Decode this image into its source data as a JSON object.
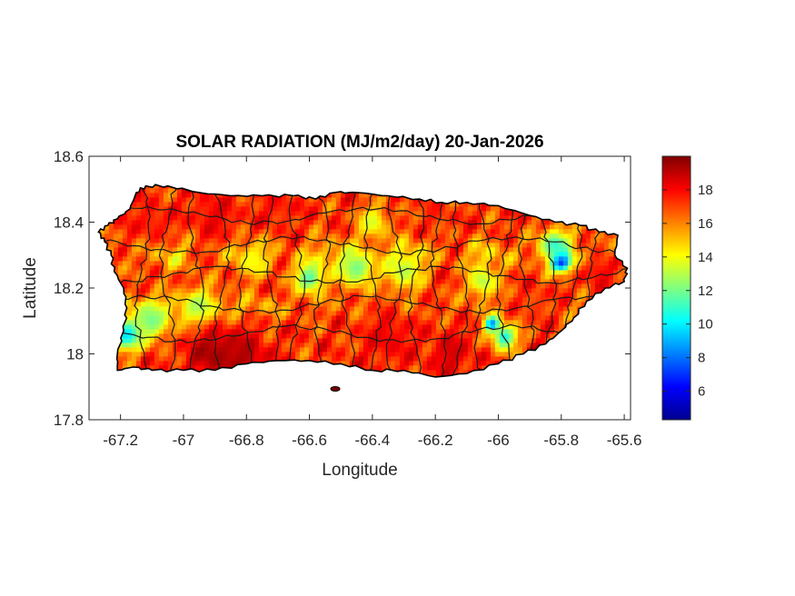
{
  "chart_data": {
    "type": "heatmap",
    "title": "SOLAR RADIATION (MJ/m2/day) 20-Jan-2026",
    "xlabel": "Longitude",
    "ylabel": "Latitude",
    "xlim": [
      -67.3,
      -65.58
    ],
    "ylim": [
      17.8,
      18.6
    ],
    "x_ticks": [
      {
        "value": -67.2,
        "label": "-67.2"
      },
      {
        "value": -67.0,
        "label": "-67"
      },
      {
        "value": -66.8,
        "label": "-66.8"
      },
      {
        "value": -66.6,
        "label": "-66.6"
      },
      {
        "value": -66.4,
        "label": "-66.4"
      },
      {
        "value": -66.2,
        "label": "-66.2"
      },
      {
        "value": -66.0,
        "label": "-66"
      },
      {
        "value": -65.8,
        "label": "-65.8"
      },
      {
        "value": -65.6,
        "label": "-65.6"
      }
    ],
    "y_ticks": [
      {
        "value": 17.8,
        "label": "17.8"
      },
      {
        "value": 18.0,
        "label": "18"
      },
      {
        "value": 18.2,
        "label": "18.2"
      },
      {
        "value": 18.4,
        "label": "18.4"
      },
      {
        "value": 18.6,
        "label": "18.6"
      }
    ],
    "colorbar": {
      "colormap": "jet",
      "range": [
        4.3,
        20.0
      ],
      "ticks": [
        {
          "value": 6,
          "label": "6"
        },
        {
          "value": 8,
          "label": "8"
        },
        {
          "value": 10,
          "label": "10"
        },
        {
          "value": 12,
          "label": "12"
        },
        {
          "value": 14,
          "label": "14"
        },
        {
          "value": 16,
          "label": "16"
        },
        {
          "value": 18,
          "label": "18"
        }
      ]
    },
    "island_outline": [
      [
        -67.27,
        18.37
      ],
      [
        -67.24,
        18.39
      ],
      [
        -67.21,
        18.41
      ],
      [
        -67.17,
        18.44
      ],
      [
        -67.15,
        18.49
      ],
      [
        -67.12,
        18.51
      ],
      [
        -67.05,
        18.51
      ],
      [
        -66.95,
        18.49
      ],
      [
        -66.85,
        18.48
      ],
      [
        -66.75,
        18.48
      ],
      [
        -66.65,
        18.48
      ],
      [
        -66.58,
        18.47
      ],
      [
        -66.52,
        18.49
      ],
      [
        -66.45,
        18.49
      ],
      [
        -66.35,
        18.48
      ],
      [
        -66.25,
        18.47
      ],
      [
        -66.18,
        18.46
      ],
      [
        -66.1,
        18.46
      ],
      [
        -66.0,
        18.45
      ],
      [
        -65.9,
        18.42
      ],
      [
        -65.82,
        18.4
      ],
      [
        -65.74,
        18.39
      ],
      [
        -65.68,
        18.37
      ],
      [
        -65.62,
        18.36
      ],
      [
        -65.63,
        18.3
      ],
      [
        -65.59,
        18.26
      ],
      [
        -65.6,
        18.22
      ],
      [
        -65.66,
        18.2
      ],
      [
        -65.72,
        18.16
      ],
      [
        -65.76,
        18.11
      ],
      [
        -65.8,
        18.07
      ],
      [
        -65.85,
        18.03
      ],
      [
        -65.92,
        18.0
      ],
      [
        -66.0,
        17.97
      ],
      [
        -66.1,
        17.94
      ],
      [
        -66.2,
        17.93
      ],
      [
        -66.3,
        17.95
      ],
      [
        -66.4,
        17.95
      ],
      [
        -66.5,
        17.97
      ],
      [
        -66.6,
        17.98
      ],
      [
        -66.7,
        17.98
      ],
      [
        -66.8,
        17.97
      ],
      [
        -66.9,
        17.95
      ],
      [
        -67.0,
        17.95
      ],
      [
        -67.1,
        17.95
      ],
      [
        -67.16,
        17.96
      ],
      [
        -67.21,
        17.95
      ],
      [
        -67.21,
        18.0
      ],
      [
        -67.19,
        18.07
      ],
      [
        -67.18,
        18.14
      ],
      [
        -67.19,
        18.2
      ],
      [
        -67.22,
        18.25
      ],
      [
        -67.23,
        18.3
      ],
      [
        -67.25,
        18.34
      ]
    ],
    "cold_spots": [
      {
        "lon": -65.8,
        "lat": 18.28,
        "value": 5.5,
        "radius": 0.03
      },
      {
        "lon": -65.82,
        "lat": 18.33,
        "value": 11.0,
        "radius": 0.05
      },
      {
        "lon": -66.02,
        "lat": 18.09,
        "value": 8.0,
        "radius": 0.025
      },
      {
        "lon": -65.98,
        "lat": 18.05,
        "value": 10.5,
        "radius": 0.04
      },
      {
        "lon": -67.18,
        "lat": 18.06,
        "value": 9.5,
        "radius": 0.05
      },
      {
        "lon": -67.1,
        "lat": 18.1,
        "value": 12.0,
        "radius": 0.06
      },
      {
        "lon": -66.95,
        "lat": 18.14,
        "value": 12.5,
        "radius": 0.06
      },
      {
        "lon": -66.6,
        "lat": 18.23,
        "value": 11.5,
        "radius": 0.05
      },
      {
        "lon": -66.45,
        "lat": 18.26,
        "value": 12.0,
        "radius": 0.06
      },
      {
        "lon": -66.3,
        "lat": 18.25,
        "value": 13.0,
        "radius": 0.06
      },
      {
        "lon": -66.4,
        "lat": 18.4,
        "value": 13.5,
        "radius": 0.05
      },
      {
        "lon": -66.05,
        "lat": 18.22,
        "value": 13.0,
        "radius": 0.05
      },
      {
        "lon": -66.78,
        "lat": 18.28,
        "value": 14.0,
        "radius": 0.05
      }
    ],
    "hot_spots": [
      {
        "lon": -66.9,
        "lat": 18.0,
        "value": 20.0,
        "radius": 0.09
      },
      {
        "lon": -66.8,
        "lat": 17.99,
        "value": 19.5,
        "radius": 0.07
      },
      {
        "lon": -66.35,
        "lat": 18.05,
        "value": 18.5,
        "radius": 0.08
      },
      {
        "lon": -66.15,
        "lat": 18.0,
        "value": 19.0,
        "radius": 0.07
      },
      {
        "lon": -66.9,
        "lat": 18.42,
        "value": 18.5,
        "radius": 0.07
      },
      {
        "lon": -67.1,
        "lat": 18.4,
        "value": 18.0,
        "radius": 0.06
      },
      {
        "lon": -66.7,
        "lat": 18.45,
        "value": 18.0,
        "radius": 0.06
      },
      {
        "lon": -66.2,
        "lat": 18.43,
        "value": 17.5,
        "radius": 0.05
      },
      {
        "lon": -65.68,
        "lat": 18.25,
        "value": 18.5,
        "radius": 0.05
      },
      {
        "lon": -65.88,
        "lat": 18.15,
        "value": 17.5,
        "radius": 0.05
      }
    ]
  }
}
